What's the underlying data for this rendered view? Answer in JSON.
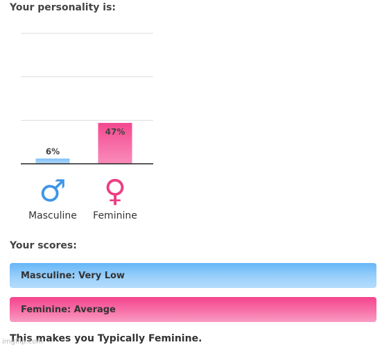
{
  "headings": {
    "personality": "Your personality is:",
    "scores": "Your scores:"
  },
  "chart_data": {
    "type": "bar",
    "categories": [
      "Masculine",
      "Feminine"
    ],
    "values": [
      6,
      47
    ],
    "value_labels": [
      "6%",
      "47%"
    ],
    "icons": [
      "male-symbol-icon",
      "female-symbol-icon"
    ],
    "icon_glyphs": [
      "♂",
      "♀"
    ],
    "colors": [
      "#8cc8f9",
      "#f7609f"
    ],
    "icon_colors": [
      "#3f95e8",
      "#ee3d82"
    ],
    "ylim": [
      0,
      150
    ],
    "gridlines": [
      0,
      50,
      100,
      150
    ],
    "grid": true,
    "title": "",
    "xlabel": "",
    "ylabel": ""
  },
  "scores": [
    {
      "label": "Masculine: Very Low",
      "color": "#8cc8f9"
    },
    {
      "label": "Feminine: Average",
      "color": "#f7609f"
    }
  ],
  "conclusion": "This makes you Typically Feminine.",
  "watermark": "imgflip.com"
}
